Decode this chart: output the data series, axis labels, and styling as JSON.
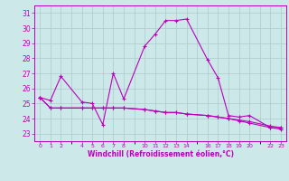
{
  "xlabel": "Windchill (Refroidissement éolien,°C)",
  "background_color": "#cce8e8",
  "grid_color": "#aacccc",
  "line_color": "#bb00bb",
  "xtick_positions": [
    0,
    1,
    2,
    4,
    5,
    6,
    7,
    8,
    10,
    11,
    12,
    13,
    14,
    16,
    17,
    18,
    19,
    20,
    22,
    23
  ],
  "xtick_labels": [
    "0",
    "1",
    "2",
    "4",
    "5",
    "6",
    "7",
    "8",
    "10",
    "11",
    "12",
    "13",
    "14",
    "16",
    "17",
    "18",
    "19",
    "20",
    "22",
    "23"
  ],
  "yticks": [
    23,
    24,
    25,
    26,
    27,
    28,
    29,
    30,
    31
  ],
  "ylim": [
    22.5,
    31.5
  ],
  "xlim": [
    -0.5,
    23.5
  ],
  "series1": [
    [
      0,
      25.4
    ],
    [
      1,
      25.2
    ],
    [
      2,
      26.8
    ],
    [
      4,
      25.1
    ],
    [
      5,
      25.0
    ],
    [
      6,
      23.6
    ],
    [
      7,
      27.0
    ],
    [
      8,
      25.3
    ],
    [
      10,
      28.8
    ],
    [
      11,
      29.6
    ],
    [
      12,
      30.5
    ],
    [
      13,
      30.5
    ],
    [
      14,
      30.6
    ],
    [
      16,
      27.9
    ],
    [
      17,
      26.7
    ],
    [
      18,
      24.2
    ],
    [
      19,
      24.1
    ],
    [
      20,
      24.2
    ],
    [
      22,
      23.4
    ],
    [
      23,
      23.4
    ]
  ],
  "series2": [
    [
      0,
      25.4
    ],
    [
      1,
      24.7
    ],
    [
      2,
      24.7
    ],
    [
      4,
      24.7
    ],
    [
      5,
      24.7
    ],
    [
      6,
      24.7
    ],
    [
      7,
      24.7
    ],
    [
      8,
      24.7
    ],
    [
      10,
      24.6
    ],
    [
      11,
      24.5
    ],
    [
      12,
      24.4
    ],
    [
      13,
      24.4
    ],
    [
      14,
      24.3
    ],
    [
      16,
      24.2
    ],
    [
      17,
      24.1
    ],
    [
      18,
      24.0
    ],
    [
      19,
      23.9
    ],
    [
      20,
      23.8
    ],
    [
      22,
      23.5
    ],
    [
      23,
      23.4
    ]
  ],
  "series3": [
    [
      0,
      25.4
    ],
    [
      1,
      24.7
    ],
    [
      2,
      24.7
    ],
    [
      4,
      24.7
    ],
    [
      5,
      24.7
    ],
    [
      6,
      24.7
    ],
    [
      7,
      24.7
    ],
    [
      8,
      24.7
    ],
    [
      10,
      24.6
    ],
    [
      11,
      24.5
    ],
    [
      12,
      24.4
    ],
    [
      13,
      24.4
    ],
    [
      14,
      24.3
    ],
    [
      16,
      24.2
    ],
    [
      17,
      24.1
    ],
    [
      18,
      24.0
    ],
    [
      19,
      23.85
    ],
    [
      20,
      23.7
    ],
    [
      22,
      23.4
    ],
    [
      23,
      23.3
    ]
  ]
}
